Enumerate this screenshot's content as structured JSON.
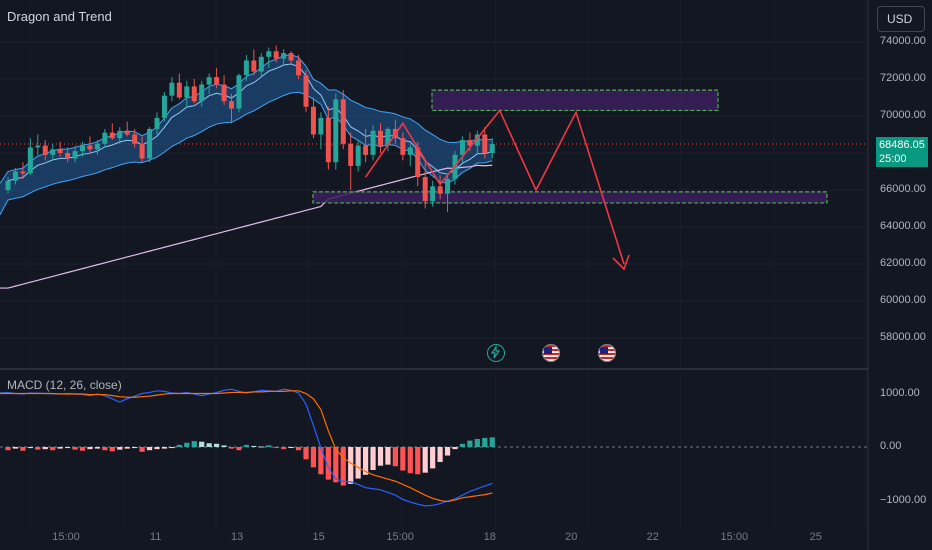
{
  "header": {
    "title": "Dragon and Trend",
    "currency": "USD"
  },
  "price_axis": {
    "labels": [
      "74000.00",
      "72000.00",
      "70000.00",
      "66000.00",
      "64000.00",
      "62000.00",
      "60000.00",
      "58000.00"
    ],
    "values": [
      74000,
      72000,
      70000,
      66000,
      64000,
      62000,
      60000,
      58000
    ],
    "last_price": "68486.05",
    "countdown": "25:00",
    "last_value": 68486.05
  },
  "macd_axis": {
    "labels": [
      "1000.00",
      "0.00",
      "−1000.00"
    ],
    "values": [
      1000,
      0,
      -1000
    ]
  },
  "macd_panel": {
    "title": "MACD (12, 26, close)"
  },
  "time_axis": {
    "labels": [
      "15:00",
      "11",
      "13",
      "15",
      "15:00",
      "18",
      "20",
      "22",
      "15:00",
      "25"
    ],
    "positions": [
      0,
      11,
      21,
      31,
      41,
      52,
      62,
      72,
      82,
      92
    ]
  },
  "events": [
    "flash-icon",
    "us-flag-icon",
    "us-flag-icon"
  ],
  "colors": {
    "background": "#131722",
    "up": "#26a69a",
    "down": "#ef5350",
    "band": "#1e4a7a",
    "zone_border": "#4caf50",
    "zone_fill": "#3a1f5c",
    "projection": "#f23645",
    "macd_line": "#2962ff",
    "signal_line": "#ff6d00"
  },
  "chart_data": [
    {
      "type": "candlestick",
      "title": "Dragon and Trend",
      "ylim": [
        56500,
        75000
      ],
      "y_ticks": [
        74000,
        72000,
        70000,
        66000,
        64000,
        62000,
        60000,
        58000
      ],
      "candles": [
        [
          66000,
          66700,
          65800,
          66500
        ],
        [
          66500,
          67200,
          66300,
          67000
        ],
        [
          67000,
          67500,
          66600,
          66900
        ],
        [
          66900,
          68800,
          66800,
          68300
        ],
        [
          68300,
          69000,
          67900,
          68400
        ],
        [
          68400,
          68700,
          67600,
          67900
        ],
        [
          67900,
          68500,
          67600,
          68200
        ],
        [
          68200,
          68600,
          67800,
          68000
        ],
        [
          68000,
          68300,
          67500,
          67700
        ],
        [
          67700,
          68400,
          67500,
          68100
        ],
        [
          68100,
          68600,
          67800,
          68400
        ],
        [
          68400,
          68900,
          68000,
          68200
        ],
        [
          68200,
          68700,
          67900,
          68500
        ],
        [
          68500,
          69300,
          68300,
          69100
        ],
        [
          69100,
          69600,
          68700,
          68800
        ],
        [
          68800,
          69400,
          68500,
          69200
        ],
        [
          69200,
          69700,
          68900,
          69000
        ],
        [
          69000,
          69300,
          68300,
          68500
        ],
        [
          68500,
          68900,
          67500,
          67700
        ],
        [
          67700,
          69400,
          67500,
          69300
        ],
        [
          69300,
          70200,
          69000,
          69900
        ],
        [
          69900,
          71300,
          69700,
          71100
        ],
        [
          71100,
          72100,
          70800,
          71800
        ],
        [
          71800,
          72300,
          70900,
          71000
        ],
        [
          71000,
          71900,
          70500,
          71600
        ],
        [
          71600,
          72000,
          70700,
          70800
        ],
        [
          70800,
          71900,
          70500,
          71700
        ],
        [
          71700,
          72300,
          71200,
          72100
        ],
        [
          72100,
          72600,
          71500,
          71700
        ],
        [
          71700,
          72200,
          70600,
          70800
        ],
        [
          70800,
          71200,
          69600,
          70400
        ],
        [
          70400,
          72300,
          70200,
          72200
        ],
        [
          72200,
          73300,
          71900,
          73000
        ],
        [
          73000,
          73600,
          72200,
          72400
        ],
        [
          72400,
          73400,
          72100,
          73200
        ],
        [
          73200,
          73700,
          72600,
          73500
        ],
        [
          73500,
          73800,
          72900,
          73100
        ],
        [
          73100,
          73600,
          72800,
          73400
        ],
        [
          73400,
          73500,
          72800,
          73000
        ],
        [
          73000,
          73300,
          72000,
          72200
        ],
        [
          72200,
          72500,
          70200,
          70500
        ],
        [
          70500,
          71000,
          68800,
          69000
        ],
        [
          69000,
          70200,
          68200,
          69900
        ],
        [
          69900,
          70500,
          67100,
          67500
        ],
        [
          67500,
          71200,
          67100,
          70900
        ],
        [
          70900,
          71400,
          68200,
          68500
        ],
        [
          68500,
          69100,
          66000,
          67300
        ],
        [
          67300,
          68700,
          67000,
          68400
        ],
        [
          68400,
          69300,
          67500,
          67900
        ],
        [
          67900,
          69500,
          67600,
          69200
        ],
        [
          69200,
          69600,
          68000,
          68400
        ],
        [
          68400,
          69400,
          68100,
          69300
        ],
        [
          69300,
          69800,
          68500,
          68800
        ],
        [
          68800,
          69100,
          67600,
          67900
        ],
        [
          67900,
          68500,
          67300,
          68300
        ],
        [
          68300,
          68600,
          66200,
          66700
        ],
        [
          66700,
          67500,
          65000,
          65400
        ],
        [
          65400,
          66500,
          65100,
          66200
        ],
        [
          66200,
          66800,
          65500,
          65800
        ],
        [
          65800,
          66900,
          64800,
          66600
        ],
        [
          66600,
          68100,
          66300,
          67900
        ],
        [
          67900,
          68900,
          67500,
          68700
        ],
        [
          68700,
          69100,
          68100,
          68400
        ],
        [
          68400,
          69200,
          68000,
          69000
        ],
        [
          69000,
          69400,
          67700,
          68000
        ],
        [
          68000,
          68800,
          67700,
          68486
        ]
      ],
      "zones": [
        {
          "y_top": 71400,
          "y_bottom": 70300
        },
        {
          "y_top": 65900,
          "y_bottom": 65300
        }
      ],
      "projection_path": [
        [
          66,
          70200
        ],
        [
          74,
          66000
        ],
        [
          81,
          70200
        ],
        [
          88,
          62000
        ]
      ]
    },
    {
      "type": "bar",
      "title": "MACD (12, 26, close)",
      "ylim": [
        -1150,
        1150
      ],
      "histogram": [
        -60,
        -30,
        -70,
        -20,
        -50,
        -40,
        -60,
        -30,
        -20,
        -50,
        -70,
        -40,
        -30,
        -60,
        -80,
        -50,
        -30,
        -20,
        -90,
        -60,
        -40,
        -30,
        -20,
        40,
        80,
        110,
        100,
        70,
        60,
        30,
        -30,
        -60,
        40,
        20,
        10,
        30,
        -20,
        -40,
        -10,
        -60,
        -230,
        -380,
        -510,
        -610,
        -660,
        -720,
        -690,
        -590,
        -520,
        -430,
        -350,
        -330,
        -360,
        -440,
        -490,
        -510,
        -480,
        -400,
        -280,
        -160,
        -40,
        60,
        120,
        150,
        170,
        180
      ],
      "macd_line": [
        1020,
        1000,
        990,
        1010,
        1005,
        1000,
        995,
        990,
        1000,
        990,
        980,
        960,
        990,
        960,
        900,
        840,
        900,
        950,
        1000,
        1020,
        1050,
        1040,
        1010,
        1000,
        1020,
        990,
        960,
        990,
        1020,
        1060,
        1080,
        1040,
        1010,
        1030,
        1060,
        1050,
        1040,
        1080,
        1060,
        1010,
        800,
        400,
        -20,
        -380,
        -600,
        -640,
        -650,
        -700,
        -760,
        -780,
        -800,
        -850,
        -900,
        -980,
        -1030,
        -1070,
        -1100,
        -1090,
        -1060,
        -1010,
        -970,
        -900,
        -830,
        -780,
        -730,
        -680
      ],
      "signal_line": [
        1000,
        1000,
        1000,
        1000,
        1000,
        1000,
        1000,
        990,
        990,
        990,
        990,
        980,
        980,
        980,
        960,
        940,
        930,
        930,
        940,
        950,
        970,
        990,
        1000,
        1000,
        1000,
        1000,
        1000,
        1000,
        1000,
        1010,
        1020,
        1020,
        1020,
        1030,
        1030,
        1040,
        1040,
        1040,
        1050,
        1050,
        1000,
        900,
        700,
        300,
        -40,
        -200,
        -300,
        -380,
        -460,
        -520,
        -560,
        -600,
        -640,
        -700,
        -760,
        -830,
        -900,
        -960,
        -1000,
        -1020,
        -990,
        -950,
        -930,
        -910,
        -890,
        -860
      ]
    }
  ]
}
